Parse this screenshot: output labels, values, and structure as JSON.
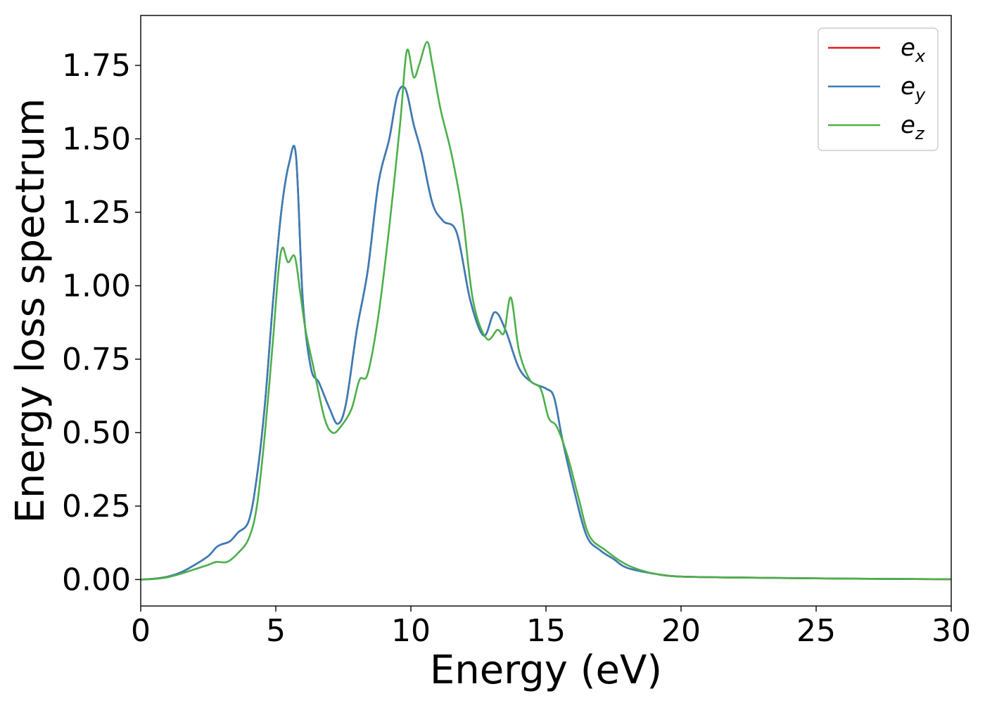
{
  "chart_data": {
    "type": "line",
    "xlabel": "Energy (eV)",
    "ylabel": "Energy loss spectrum",
    "xlim": [
      0,
      30
    ],
    "ylim": [
      -0.09,
      1.92
    ],
    "xticks": [
      0,
      5,
      10,
      15,
      20,
      25,
      30
    ],
    "yticks": [
      0.0,
      0.25,
      0.5,
      0.75,
      1.0,
      1.25,
      1.5,
      1.75
    ],
    "ytick_labels": [
      "0.00",
      "0.25",
      "0.50",
      "0.75",
      "1.00",
      "1.25",
      "1.50",
      "1.75"
    ],
    "grid": false,
    "legend_position": "top-right",
    "series": [
      {
        "name": "e",
        "subscript": "x",
        "color": "#e41a1c",
        "x": [
          0,
          0.5,
          1.0,
          1.5,
          2.0,
          2.5,
          2.8,
          3.0,
          3.3,
          3.6,
          4.0,
          4.3,
          4.6,
          4.9,
          5.2,
          5.5,
          5.75,
          6.0,
          6.3,
          6.6,
          7.0,
          7.3,
          7.6,
          8.0,
          8.4,
          8.8,
          9.2,
          9.5,
          9.8,
          10.1,
          10.4,
          10.8,
          11.2,
          11.7,
          12.2,
          12.7,
          13.1,
          13.5,
          14.0,
          14.5,
          15.0,
          15.3,
          15.6,
          16.0,
          16.5,
          17.0,
          17.5,
          18.0,
          19.0,
          20.0,
          22.0,
          25.0,
          28.0,
          30.0
        ],
        "y": [
          0.0,
          0.003,
          0.01,
          0.025,
          0.05,
          0.08,
          0.11,
          0.12,
          0.13,
          0.16,
          0.2,
          0.35,
          0.6,
          0.95,
          1.25,
          1.42,
          1.44,
          0.95,
          0.72,
          0.67,
          0.58,
          0.53,
          0.6,
          0.85,
          1.05,
          1.35,
          1.5,
          1.65,
          1.67,
          1.55,
          1.45,
          1.28,
          1.22,
          1.18,
          0.95,
          0.83,
          0.91,
          0.85,
          0.72,
          0.67,
          0.65,
          0.62,
          0.48,
          0.32,
          0.15,
          0.1,
          0.07,
          0.04,
          0.02,
          0.01,
          0.007,
          0.004,
          0.002,
          0.001
        ]
      },
      {
        "name": "e",
        "subscript": "y",
        "color": "#377eb8",
        "x": [
          0,
          0.5,
          1.0,
          1.5,
          2.0,
          2.5,
          2.8,
          3.0,
          3.3,
          3.6,
          4.0,
          4.3,
          4.6,
          4.9,
          5.2,
          5.5,
          5.75,
          6.0,
          6.3,
          6.6,
          7.0,
          7.3,
          7.6,
          8.0,
          8.4,
          8.8,
          9.2,
          9.5,
          9.8,
          10.1,
          10.4,
          10.8,
          11.2,
          11.7,
          12.2,
          12.7,
          13.1,
          13.5,
          14.0,
          14.5,
          15.0,
          15.3,
          15.6,
          16.0,
          16.5,
          17.0,
          17.5,
          18.0,
          19.0,
          20.0,
          22.0,
          25.0,
          28.0,
          30.0
        ],
        "y": [
          0.0,
          0.003,
          0.01,
          0.025,
          0.05,
          0.08,
          0.11,
          0.12,
          0.13,
          0.16,
          0.2,
          0.35,
          0.6,
          0.95,
          1.25,
          1.42,
          1.44,
          0.95,
          0.72,
          0.67,
          0.58,
          0.53,
          0.6,
          0.85,
          1.05,
          1.35,
          1.5,
          1.65,
          1.67,
          1.55,
          1.45,
          1.28,
          1.22,
          1.18,
          0.95,
          0.83,
          0.91,
          0.85,
          0.72,
          0.67,
          0.65,
          0.62,
          0.48,
          0.32,
          0.15,
          0.1,
          0.07,
          0.04,
          0.02,
          0.01,
          0.007,
          0.004,
          0.002,
          0.001
        ]
      },
      {
        "name": "e",
        "subscript": "z",
        "color": "#4daf4a",
        "x": [
          0,
          0.5,
          1.0,
          1.5,
          2.0,
          2.5,
          2.8,
          3.2,
          3.6,
          4.0,
          4.3,
          4.6,
          4.9,
          5.1,
          5.25,
          5.45,
          5.7,
          5.9,
          6.1,
          6.4,
          6.8,
          7.1,
          7.4,
          7.8,
          8.1,
          8.4,
          8.8,
          9.2,
          9.6,
          9.85,
          10.1,
          10.3,
          10.6,
          10.8,
          11.1,
          11.5,
          11.9,
          12.3,
          12.8,
          13.2,
          13.45,
          13.7,
          14.0,
          14.4,
          14.8,
          15.1,
          15.4,
          15.8,
          16.2,
          16.6,
          17.2,
          18.0,
          19.0,
          20.0,
          22.0,
          25.0,
          28.0,
          30.0
        ],
        "y": [
          0.0,
          0.002,
          0.008,
          0.02,
          0.035,
          0.05,
          0.06,
          0.06,
          0.09,
          0.14,
          0.25,
          0.5,
          0.82,
          1.05,
          1.13,
          1.08,
          1.1,
          0.98,
          0.85,
          0.72,
          0.55,
          0.5,
          0.52,
          0.58,
          0.68,
          0.7,
          0.9,
          1.2,
          1.55,
          1.8,
          1.71,
          1.75,
          1.83,
          1.75,
          1.6,
          1.45,
          1.25,
          0.95,
          0.82,
          0.85,
          0.84,
          0.96,
          0.78,
          0.68,
          0.65,
          0.55,
          0.52,
          0.42,
          0.28,
          0.15,
          0.1,
          0.05,
          0.02,
          0.01,
          0.007,
          0.004,
          0.002,
          0.001
        ]
      }
    ]
  }
}
